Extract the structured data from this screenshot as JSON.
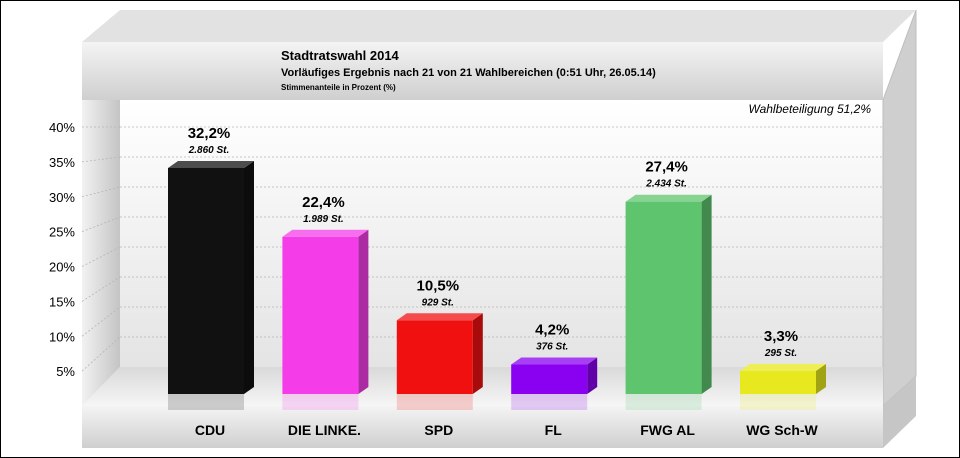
{
  "chart_data": {
    "type": "bar",
    "title": "Stadtratswahl 2014",
    "subtitle": "Vorläufiges Ergebnis nach 21 von 21 Wahlbereichen (0:51 Uhr, 26.05.14)",
    "subtitle2": "Stimmenanteile in Prozent (%)",
    "annotation": "Wahlbeteiligung 51,2%",
    "categories": [
      "CDU",
      "DIE LINKE.",
      "SPD",
      "FL",
      "FWG AL",
      "WG Sch-W"
    ],
    "values": [
      32.2,
      22.4,
      10.5,
      4.2,
      27.4,
      3.3
    ],
    "value_labels": [
      "32,2%",
      "22,4%",
      "10,5%",
      "4,2%",
      "27,4%",
      "3,3%"
    ],
    "vote_labels": [
      "2.860 St.",
      "1.989 St.",
      "929 St.",
      "376 St.",
      "2.434 St.",
      "295 St."
    ],
    "colors": [
      "#111111",
      "#f43de8",
      "#f01010",
      "#8a00f0",
      "#5ec46e",
      "#e8e81e"
    ],
    "yticks": [
      "5%",
      "10%",
      "15%",
      "20%",
      "25%",
      "30%",
      "35%",
      "40%"
    ],
    "ylim": [
      0,
      40
    ],
    "grid": true,
    "legend": "none"
  }
}
